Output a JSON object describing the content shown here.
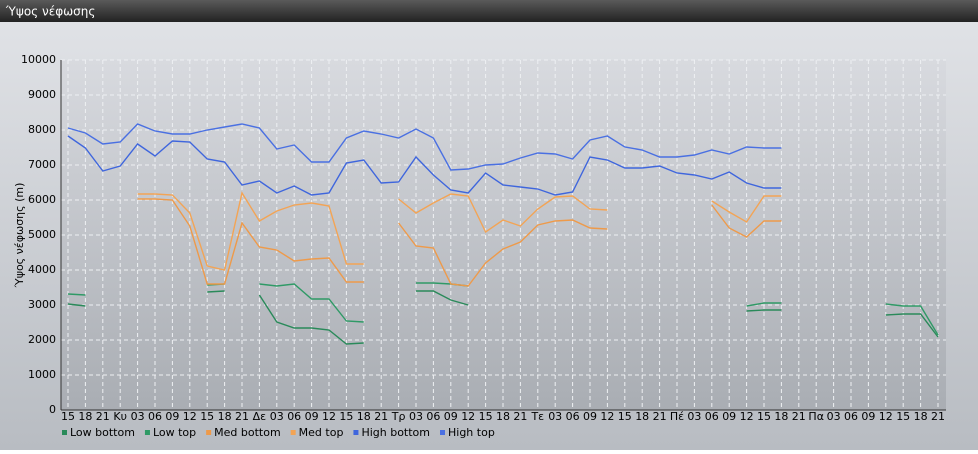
{
  "chart_data": {
    "type": "line",
    "title": "Ύψος νέφωσης",
    "ylabel": "Ύψος νέφωσης (m)",
    "categories": [
      "15",
      "18",
      "21",
      "Κυ",
      "03",
      "06",
      "09",
      "12",
      "15",
      "18",
      "21",
      "Δε",
      "03",
      "06",
      "09",
      "12",
      "15",
      "18",
      "21",
      "Τρ",
      "03",
      "06",
      "09",
      "12",
      "15",
      "18",
      "21",
      "Τε",
      "03",
      "06",
      "09",
      "12",
      "15",
      "18",
      "21",
      "Πέ",
      "03",
      "06",
      "09",
      "12",
      "15",
      "18",
      "21",
      "Πα",
      "03",
      "06",
      "09",
      "12",
      "15",
      "18",
      "21"
    ],
    "ylim": [
      0,
      10000
    ],
    "yticks": [
      0,
      1000,
      2000,
      3000,
      4000,
      5000,
      6000,
      7000,
      8000,
      9000,
      10000
    ],
    "grid": true,
    "legend": "bottom-left",
    "series": [
      {
        "name": "Low bottom",
        "color": "#2a8a5a",
        "values": [
          3029,
          2971,
          null,
          null,
          null,
          null,
          null,
          null,
          3371,
          3400,
          null,
          3286,
          2514,
          2343,
          2343,
          2286,
          1886,
          1914,
          null,
          null,
          3400,
          3400,
          3143,
          3000,
          null,
          null,
          null,
          null,
          null,
          null,
          null,
          null,
          null,
          null,
          null,
          null,
          null,
          null,
          null,
          2829,
          2857,
          2857,
          null,
          null,
          null,
          null,
          null,
          2714,
          2743,
          2743,
          2086
        ]
      },
      {
        "name": "Low top",
        "color": "#2f9a66",
        "values": [
          3314,
          3286,
          null,
          null,
          null,
          null,
          null,
          null,
          3571,
          3600,
          null,
          3600,
          3543,
          3600,
          3171,
          3171,
          2543,
          2514,
          null,
          null,
          3629,
          3629,
          3600,
          3543,
          null,
          null,
          null,
          null,
          null,
          null,
          null,
          null,
          null,
          null,
          null,
          null,
          null,
          null,
          null,
          2971,
          3057,
          3057,
          null,
          null,
          null,
          null,
          null,
          3029,
          2971,
          2971,
          2143
        ]
      },
      {
        "name": "Med bottom",
        "color": "#ee9a4a",
        "values": [
          null,
          null,
          null,
          null,
          6029,
          6029,
          6000,
          5257,
          3600,
          3600,
          5343,
          4657,
          4571,
          4257,
          4314,
          4343,
          3657,
          3657,
          null,
          5343,
          4686,
          4629,
          3600,
          3543,
          4200,
          4600,
          4800,
          5286,
          5400,
          5429,
          5200,
          5171,
          null,
          null,
          null,
          null,
          null,
          5857,
          5200,
          4943,
          5400,
          5400,
          null,
          null,
          null,
          null,
          null,
          null,
          null,
          null,
          null
        ]
      },
      {
        "name": "Med top",
        "color": "#f3a455",
        "values": [
          null,
          null,
          null,
          null,
          6171,
          6171,
          6143,
          5629,
          4114,
          4000,
          6200,
          5400,
          5686,
          5857,
          5914,
          5829,
          4171,
          4171,
          null,
          6029,
          5629,
          5914,
          6171,
          6114,
          5086,
          5429,
          5257,
          5743,
          6086,
          6114,
          5743,
          5714,
          null,
          null,
          null,
          null,
          null,
          5971,
          5657,
          5371,
          6114,
          6114,
          null,
          null,
          null,
          null,
          null,
          null,
          null,
          null,
          null
        ]
      },
      {
        "name": "High bottom",
        "color": "#3f66dd",
        "values": [
          7829,
          7486,
          6829,
          6971,
          7600,
          7257,
          7686,
          7657,
          7171,
          7086,
          6429,
          6543,
          6200,
          6400,
          6143,
          6200,
          7057,
          7143,
          6486,
          6514,
          7229,
          6714,
          6286,
          6200,
          6771,
          6429,
          6371,
          6314,
          6143,
          6229,
          7229,
          7143,
          6914,
          6914,
          6971,
          6771,
          6714,
          6600,
          6800,
          6486,
          6343,
          6343,
          null,
          null,
          null,
          null,
          null,
          null,
          null,
          null,
          null
        ]
      },
      {
        "name": "High top",
        "color": "#4a70e2",
        "values": [
          8057,
          7914,
          7600,
          7657,
          8171,
          7971,
          7886,
          7886,
          8000,
          8086,
          8171,
          8057,
          7457,
          7571,
          7086,
          7086,
          7771,
          7971,
          7886,
          7771,
          8029,
          7771,
          6857,
          6886,
          7000,
          7029,
          7200,
          7343,
          7314,
          7171,
          7714,
          7829,
          7514,
          7429,
          7229,
          7229,
          7286,
          7429,
          7314,
          7514,
          7486,
          7486,
          null,
          null,
          null,
          null,
          null,
          null,
          null,
          null,
          null
        ]
      }
    ]
  }
}
